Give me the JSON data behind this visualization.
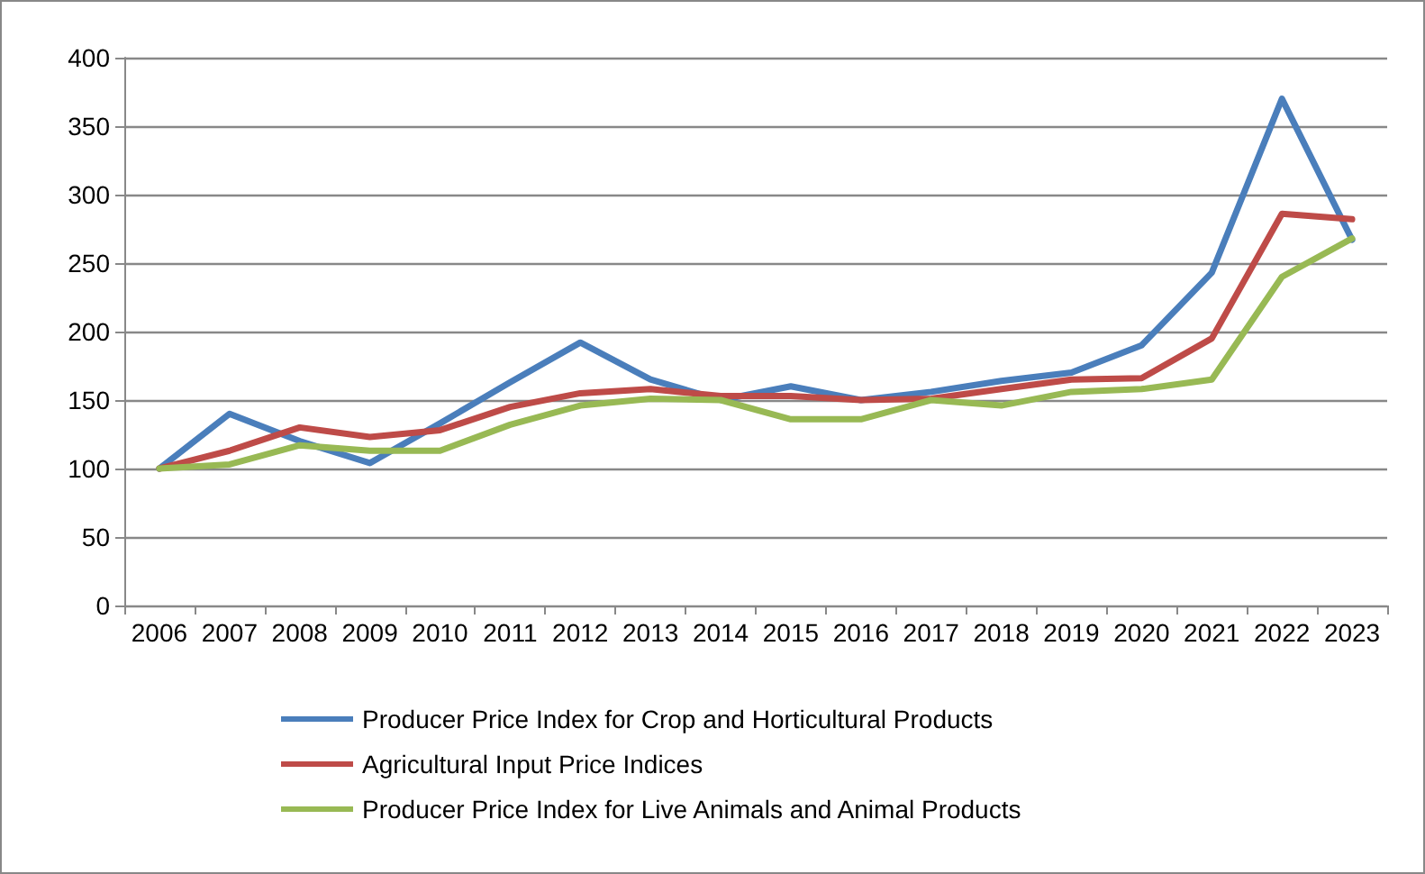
{
  "chart_data": {
    "type": "line",
    "categories": [
      "2006",
      "2007",
      "2008",
      "2009",
      "2010",
      "2011",
      "2012",
      "2013",
      "2014",
      "2015",
      "2016",
      "2017",
      "2018",
      "2019",
      "2020",
      "2021",
      "2022",
      "2023"
    ],
    "series": [
      {
        "name": "Producer Price Index for Crop and Horticultural Products",
        "color": "#4a7ebb",
        "values": [
          100,
          140,
          120,
          104,
          133,
          163,
          192,
          165,
          150,
          160,
          150,
          156,
          164,
          170,
          190,
          243,
          370,
          267
        ]
      },
      {
        "name": "Agricultural Input Price Indices",
        "color": "#be4b48",
        "values": [
          100,
          113,
          130,
          123,
          128,
          145,
          155,
          158,
          153,
          153,
          150,
          151,
          158,
          165,
          166,
          195,
          286,
          282
        ]
      },
      {
        "name": "Producer Price Index for Live Animals and Animal Products",
        "color": "#98b954",
        "values": [
          100,
          103,
          117,
          113,
          113,
          132,
          146,
          151,
          150,
          136,
          136,
          150,
          146,
          156,
          158,
          165,
          240,
          268
        ]
      }
    ],
    "ylim": [
      0,
      400
    ],
    "yticks": [
      0,
      50,
      100,
      150,
      200,
      250,
      300,
      350,
      400
    ],
    "grid": "y",
    "legend": "bottom",
    "marker": "none",
    "line_style": "solid"
  }
}
